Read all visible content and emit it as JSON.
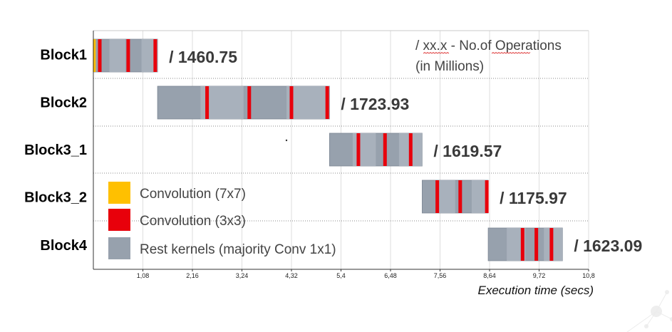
{
  "chart_data": {
    "type": "timeline",
    "xlabel": "Execution time (secs)",
    "xlim": [
      0,
      10.8
    ],
    "x_ticks": [
      "1,08",
      "2,16",
      "3,24",
      "4,32",
      "5,4",
      "6,48",
      "7,56",
      "8,64",
      "9,72",
      "10,8"
    ],
    "grid": true,
    "note": [
      "/ xx.x -  No.of Operations",
      "(in Millions)"
    ],
    "legend": [
      {
        "label": "Convolution (7x7)",
        "color": "#FFC000"
      },
      {
        "label": "Convolution (3x3)",
        "color": "#E8000B"
      },
      {
        "label": "Rest kernels (majority Conv 1x1)",
        "color": "#97A1AD"
      }
    ],
    "series": [
      {
        "name": "Block1",
        "start": 0.0,
        "end": 1.4,
        "operations_label": "/ 1460.75",
        "conv7x7": [
          0.02
        ],
        "conv3x3": [
          0.14,
          0.76,
          1.35
        ]
      },
      {
        "name": "Block2",
        "start": 1.4,
        "end": 5.15,
        "operations_label": "/ 1723.93",
        "conv7x7": [],
        "conv3x3": [
          2.48,
          3.4,
          4.32,
          5.1
        ]
      },
      {
        "name": "Block3_1",
        "start": 5.15,
        "end": 7.17,
        "operations_label": "/ 1619.57",
        "conv7x7": [],
        "conv3x3": [
          5.78,
          6.36,
          6.92
        ]
      },
      {
        "name": "Block3_2",
        "start": 7.17,
        "end": 8.61,
        "operations_label": "/ 1175.97",
        "conv7x7": [],
        "conv3x3": [
          7.5,
          8.0,
          8.58
        ]
      },
      {
        "name": "Block4",
        "start": 8.61,
        "end": 10.23,
        "operations_label": "/ 1623.09",
        "conv7x7": [],
        "conv3x3": [
          9.36,
          9.66,
          9.99
        ]
      }
    ]
  }
}
